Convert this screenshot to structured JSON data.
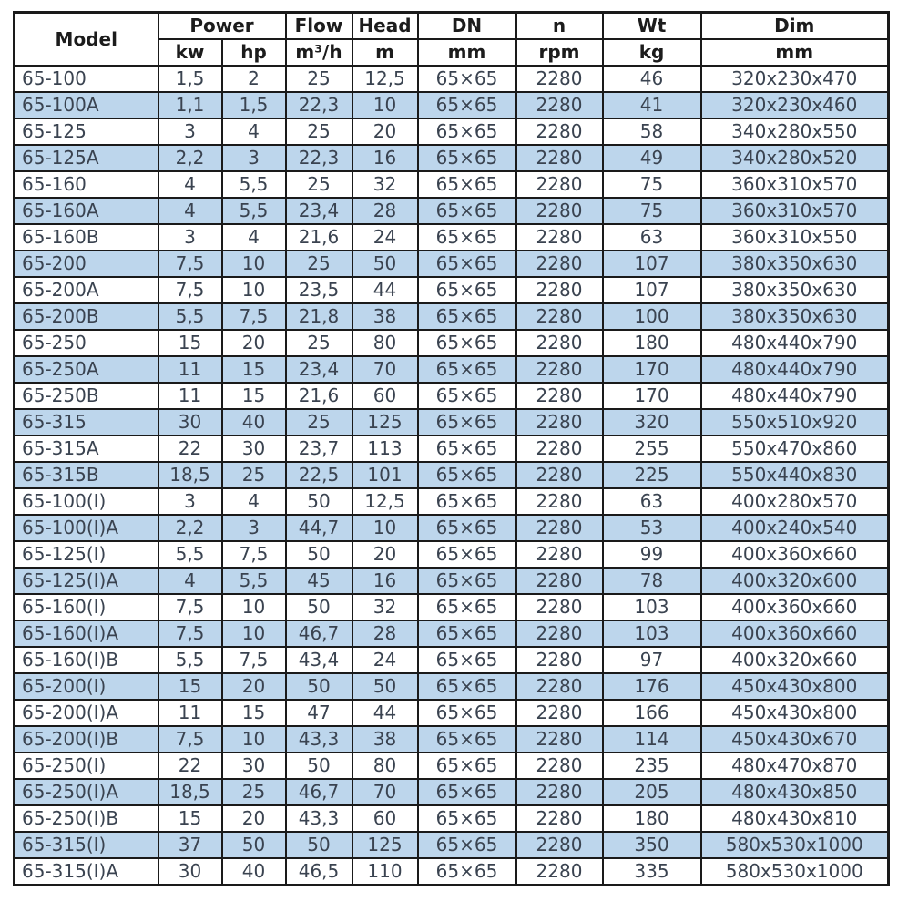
{
  "colors": {
    "alt_row_bg": "#bdd6ec",
    "row_bg": "#ffffff",
    "border": "#1a1a1a",
    "body_text": "#3a4350",
    "header_text": "#1c1c1c"
  },
  "chart_data": {
    "type": "table",
    "header": {
      "model": "Model",
      "power": "Power",
      "kw": "kw",
      "hp": "hp",
      "flow": "Flow",
      "flow_unit": "m³/h",
      "head": "Head",
      "head_unit": "m",
      "dn": "DN",
      "dn_unit": "mm",
      "n": "n",
      "n_unit": "rpm",
      "wt": "Wt",
      "wt_unit": "kg",
      "dim": "Dim",
      "dim_unit": "mm"
    },
    "rows": [
      [
        "65-100",
        "1,5",
        "2",
        "25",
        "12,5",
        "65×65",
        "2280",
        "46",
        "320x230x470"
      ],
      [
        "65-100A",
        "1,1",
        "1,5",
        "22,3",
        "10",
        "65×65",
        "2280",
        "41",
        "320x230x460"
      ],
      [
        "65-125",
        "3",
        "4",
        "25",
        "20",
        "65×65",
        "2280",
        "58",
        "340x280x550"
      ],
      [
        "65-125A",
        "2,2",
        "3",
        "22,3",
        "16",
        "65×65",
        "2280",
        "49",
        "340x280x520"
      ],
      [
        "65-160",
        "4",
        "5,5",
        "25",
        "32",
        "65×65",
        "2280",
        "75",
        "360x310x570"
      ],
      [
        "65-160A",
        "4",
        "5,5",
        "23,4",
        "28",
        "65×65",
        "2280",
        "75",
        "360x310x570"
      ],
      [
        "65-160B",
        "3",
        "4",
        "21,6",
        "24",
        "65×65",
        "2280",
        "63",
        "360x310x550"
      ],
      [
        "65-200",
        "7,5",
        "10",
        "25",
        "50",
        "65×65",
        "2280",
        "107",
        "380x350x630"
      ],
      [
        "65-200A",
        "7,5",
        "10",
        "23,5",
        "44",
        "65×65",
        "2280",
        "107",
        "380x350x630"
      ],
      [
        "65-200B",
        "5,5",
        "7,5",
        "21,8",
        "38",
        "65×65",
        "2280",
        "100",
        "380x350x630"
      ],
      [
        "65-250",
        "15",
        "20",
        "25",
        "80",
        "65×65",
        "2280",
        "180",
        "480x440x790"
      ],
      [
        "65-250A",
        "11",
        "15",
        "23,4",
        "70",
        "65×65",
        "2280",
        "170",
        "480x440x790"
      ],
      [
        "65-250B",
        "11",
        "15",
        "21,6",
        "60",
        "65×65",
        "2280",
        "170",
        "480x440x790"
      ],
      [
        "65-315",
        "30",
        "40",
        "25",
        "125",
        "65×65",
        "2280",
        "320",
        "550x510x920"
      ],
      [
        "65-315A",
        "22",
        "30",
        "23,7",
        "113",
        "65×65",
        "2280",
        "255",
        "550x470x860"
      ],
      [
        "65-315B",
        "18,5",
        "25",
        "22,5",
        "101",
        "65×65",
        "2280",
        "225",
        "550x440x830"
      ],
      [
        "65-100(I)",
        "3",
        "4",
        "50",
        "12,5",
        "65×65",
        "2280",
        "63",
        "400x280x570"
      ],
      [
        "65-100(I)A",
        "2,2",
        "3",
        "44,7",
        "10",
        "65×65",
        "2280",
        "53",
        "400x240x540"
      ],
      [
        "65-125(I)",
        "5,5",
        "7,5",
        "50",
        "20",
        "65×65",
        "2280",
        "99",
        "400x360x660"
      ],
      [
        "65-125(I)A",
        "4",
        "5,5",
        "45",
        "16",
        "65×65",
        "2280",
        "78",
        "400x320x600"
      ],
      [
        "65-160(I)",
        "7,5",
        "10",
        "50",
        "32",
        "65×65",
        "2280",
        "103",
        "400x360x660"
      ],
      [
        "65-160(I)A",
        "7,5",
        "10",
        "46,7",
        "28",
        "65×65",
        "2280",
        "103",
        "400x360x660"
      ],
      [
        "65-160(I)B",
        "5,5",
        "7,5",
        "43,4",
        "24",
        "65×65",
        "2280",
        "97",
        "400x320x660"
      ],
      [
        "65-200(I)",
        "15",
        "20",
        "50",
        "50",
        "65×65",
        "2280",
        "176",
        "450x430x800"
      ],
      [
        "65-200(I)A",
        "11",
        "15",
        "47",
        "44",
        "65×65",
        "2280",
        "166",
        "450x430x800"
      ],
      [
        "65-200(I)B",
        "7,5",
        "10",
        "43,3",
        "38",
        "65×65",
        "2280",
        "114",
        "450x430x670"
      ],
      [
        "65-250(I)",
        "22",
        "30",
        "50",
        "80",
        "65×65",
        "2280",
        "235",
        "480x470x870"
      ],
      [
        "65-250(I)A",
        "18,5",
        "25",
        "46,7",
        "70",
        "65×65",
        "2280",
        "205",
        "480x430x850"
      ],
      [
        "65-250(I)B",
        "15",
        "20",
        "43,3",
        "60",
        "65×65",
        "2280",
        "180",
        "480x430x810"
      ],
      [
        "65-315(I)",
        "37",
        "50",
        "50",
        "125",
        "65×65",
        "2280",
        "350",
        "580x530x1000"
      ],
      [
        "65-315(I)A",
        "30",
        "40",
        "46,5",
        "110",
        "65×65",
        "2280",
        "335",
        "580x530x1000"
      ]
    ]
  }
}
